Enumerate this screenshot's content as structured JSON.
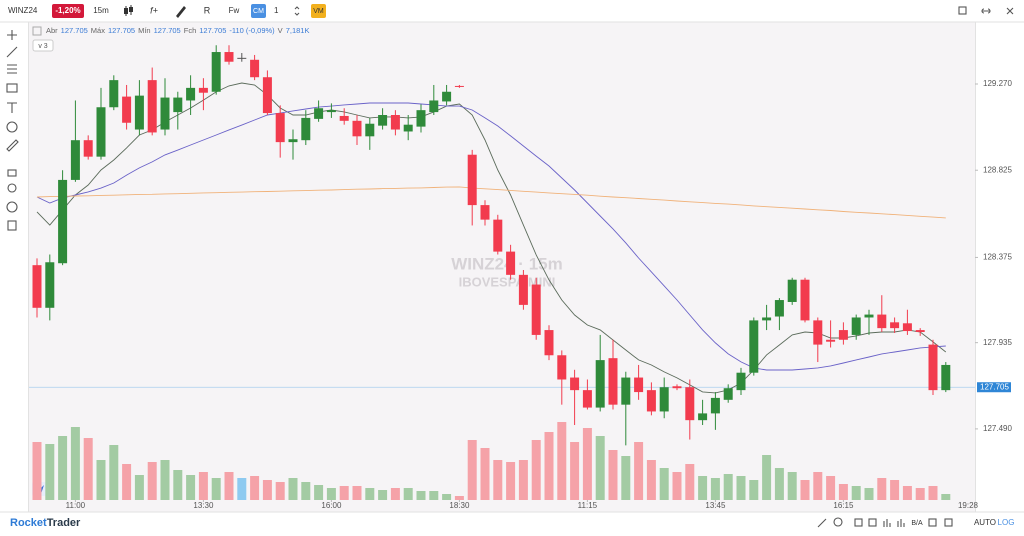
{
  "header": {
    "symbol": "WINZ24",
    "change_badge": "-1,20%",
    "interval": "15m",
    "fw": "Fw",
    "cm": "CM",
    "count": "1",
    "vm": "VM"
  },
  "info": {
    "ohlc": [
      {
        "label": "Abr",
        "value": "127.705"
      },
      {
        "label": "Máx",
        "value": "127.705"
      },
      {
        "label": "Mín",
        "value": "127.705"
      },
      {
        "label": "Fch",
        "value": "127.705"
      }
    ],
    "change": "-110 (-0,09%)",
    "volume": {
      "label": "V",
      "value": "7,181K"
    },
    "studies_button": "v 3"
  },
  "footer": {
    "logo_a": "Rocket",
    "logo_b": "Trader",
    "ba": "B/A",
    "auto": "AUTO",
    "log": "LOG"
  },
  "chart_data": {
    "type": "candlestick",
    "watermark": {
      "line1": "WINZ24 · 15m",
      "line2": "IBOVESPA MINI"
    },
    "categories": [
      null,
      null,
      null,
      "11:00",
      null,
      null,
      null,
      null,
      null,
      null,
      null,
      null,
      null,
      "13:30",
      null,
      null,
      null,
      null,
      null,
      null,
      null,
      null,
      null,
      "16:00",
      null,
      null,
      null,
      null,
      null,
      null,
      null,
      null,
      null,
      "18:30",
      null,
      null,
      null,
      null,
      null,
      null,
      null,
      null,
      null,
      "11:15",
      null,
      null,
      null,
      null,
      null,
      null,
      null,
      null,
      null,
      "13:45",
      null,
      null,
      null,
      null,
      null,
      null,
      null,
      null,
      null,
      "16:15",
      null,
      null,
      null,
      null,
      null,
      null,
      null,
      null
    ],
    "time_marker": "19:28",
    "candles": [
      [
        128.335,
        128.37,
        128.065,
        128.115
      ],
      [
        128.115,
        128.39,
        128.05,
        128.35
      ],
      [
        128.345,
        128.825,
        128.335,
        128.775
      ],
      [
        128.775,
        129.185,
        128.765,
        128.98
      ],
      [
        128.98,
        129.005,
        128.88,
        128.895
      ],
      [
        128.895,
        129.25,
        128.88,
        129.15
      ],
      [
        129.15,
        129.315,
        129.135,
        129.29
      ],
      [
        129.205,
        129.265,
        129.035,
        129.07
      ],
      [
        129.035,
        129.29,
        129.005,
        129.21
      ],
      [
        129.29,
        129.355,
        129.005,
        129.02
      ],
      [
        129.035,
        129.3,
        129.005,
        129.2
      ],
      [
        129.125,
        129.23,
        129.035,
        129.2
      ],
      [
        129.185,
        129.315,
        129.11,
        129.25
      ],
      [
        129.25,
        129.3,
        129.135,
        129.225
      ],
      [
        129.23,
        129.47,
        129.215,
        129.435
      ],
      [
        129.435,
        129.47,
        129.37,
        129.385
      ],
      [
        129.405,
        129.43,
        129.385,
        129.405
      ],
      [
        129.395,
        129.42,
        129.29,
        129.305
      ],
      [
        129.305,
        129.34,
        129.11,
        129.12
      ],
      [
        129.12,
        129.16,
        128.89,
        128.97
      ],
      [
        128.97,
        129.035,
        128.88,
        128.985
      ],
      [
        128.98,
        129.135,
        128.955,
        129.095
      ],
      [
        129.09,
        129.185,
        129.075,
        129.145
      ],
      [
        129.125,
        129.17,
        129.095,
        129.135
      ],
      [
        129.105,
        129.145,
        129.06,
        129.08
      ],
      [
        129.08,
        129.11,
        128.955,
        129.0
      ],
      [
        129.0,
        129.095,
        128.93,
        129.065
      ],
      [
        129.055,
        129.145,
        129.035,
        129.11
      ],
      [
        129.11,
        129.135,
        129.005,
        129.035
      ],
      [
        129.025,
        129.11,
        128.98,
        129.06
      ],
      [
        129.05,
        129.165,
        129.02,
        129.135
      ],
      [
        129.125,
        129.265,
        129.11,
        129.185
      ],
      [
        129.18,
        129.265,
        129.16,
        129.23
      ],
      [
        129.26,
        129.265,
        129.25,
        129.255
      ],
      [
        128.905,
        128.93,
        128.54,
        128.645
      ],
      [
        128.645,
        128.67,
        128.54,
        128.57
      ],
      [
        128.57,
        128.595,
        128.39,
        128.405
      ],
      [
        128.405,
        128.44,
        128.26,
        128.285
      ],
      [
        128.285,
        128.31,
        128.105,
        128.13
      ],
      [
        128.235,
        128.27,
        127.95,
        127.975
      ],
      [
        128.0,
        128.025,
        127.845,
        127.87
      ],
      [
        127.87,
        127.895,
        127.615,
        127.745
      ],
      [
        127.755,
        127.795,
        127.51,
        127.69
      ],
      [
        127.69,
        127.745,
        127.59,
        127.6
      ],
      [
        127.6,
        127.975,
        127.58,
        127.845
      ],
      [
        127.855,
        127.95,
        127.59,
        127.615
      ],
      [
        127.615,
        127.785,
        127.405,
        127.755
      ],
      [
        127.755,
        127.82,
        127.64,
        127.68
      ],
      [
        127.69,
        127.73,
        127.56,
        127.58
      ],
      [
        127.58,
        127.755,
        127.545,
        127.705
      ],
      [
        127.71,
        127.72,
        127.69,
        127.7
      ],
      [
        127.705,
        127.745,
        127.435,
        127.535
      ],
      [
        127.535,
        127.64,
        127.51,
        127.57
      ],
      [
        127.57,
        127.68,
        127.485,
        127.65
      ],
      [
        127.64,
        127.72,
        127.625,
        127.7
      ],
      [
        127.69,
        127.805,
        127.665,
        127.78
      ],
      [
        127.78,
        128.065,
        127.765,
        128.05
      ],
      [
        128.05,
        128.13,
        128.0,
        128.065
      ],
      [
        128.07,
        128.165,
        128.0,
        128.155
      ],
      [
        128.145,
        128.27,
        128.13,
        128.26
      ],
      [
        128.26,
        128.27,
        128.04,
        128.05
      ],
      [
        128.05,
        128.065,
        127.835,
        127.925
      ],
      [
        127.95,
        128.05,
        127.91,
        127.94
      ],
      [
        128.0,
        128.04,
        127.925,
        127.95
      ],
      [
        127.975,
        128.08,
        127.95,
        128.065
      ],
      [
        128.065,
        128.105,
        127.975,
        128.08
      ],
      [
        128.08,
        128.18,
        127.99,
        128.01
      ],
      [
        128.04,
        128.065,
        127.985,
        128.01
      ],
      [
        128.035,
        128.105,
        127.975,
        127.995
      ],
      [
        128.0,
        128.01,
        127.97,
        127.99
      ],
      [
        127.925,
        127.95,
        127.665,
        127.69
      ],
      [
        127.69,
        127.835,
        127.68,
        127.82
      ]
    ],
    "volume": [
      58,
      56,
      64,
      73,
      62,
      40,
      55,
      36,
      25,
      38,
      40,
      30,
      25,
      28,
      22,
      28,
      22,
      24,
      20,
      18,
      22,
      18,
      15,
      12,
      14,
      14,
      12,
      10,
      12,
      12,
      9,
      9,
      6,
      4,
      60,
      52,
      40,
      38,
      40,
      60,
      68,
      78,
      58,
      72,
      64,
      50,
      44,
      58,
      40,
      32,
      28,
      36,
      24,
      22,
      26,
      24,
      20,
      45,
      32,
      28,
      20,
      28,
      24,
      16,
      14,
      12,
      22,
      20,
      14,
      12,
      14,
      6
    ],
    "vlim": [
      0,
      100
    ],
    "lines": [
      {
        "color": "#5b6b5b",
        "values": [
          128.61,
          128.542,
          128.62,
          128.697,
          128.749,
          128.826,
          128.878,
          128.94,
          129.007,
          129.033,
          129.074,
          129.11,
          129.146,
          129.187,
          129.229,
          129.26,
          129.275,
          129.265,
          129.213,
          129.146,
          129.11,
          129.11,
          129.126,
          129.136,
          129.126,
          129.11,
          129.095,
          129.1,
          129.1,
          129.095,
          129.1,
          129.126,
          129.156,
          129.167,
          129.11,
          128.981,
          128.826,
          128.697,
          128.542,
          128.388,
          128.259,
          128.155,
          128.078,
          128.026,
          128.001,
          127.949,
          127.897,
          127.846,
          127.82,
          127.784,
          127.753,
          127.717,
          127.681,
          127.676,
          127.691,
          127.727,
          127.794,
          127.872,
          127.923,
          127.975,
          127.99,
          127.985,
          127.959,
          127.959,
          127.97,
          127.985,
          127.99,
          127.99,
          128.001,
          127.99,
          127.939,
          127.887
        ]
      },
      {
        "color": "#6a62c8",
        "values": [
          128.687,
          128.656,
          128.682,
          128.697,
          128.713,
          128.733,
          128.759,
          128.8,
          128.837,
          128.868,
          128.904,
          128.929,
          128.955,
          128.981,
          129.007,
          129.033,
          129.058,
          129.084,
          129.11,
          129.12,
          129.131,
          129.141,
          129.151,
          129.156,
          129.162,
          129.167,
          129.172,
          129.172,
          129.172,
          129.172,
          129.167,
          129.162,
          129.156,
          129.156,
          129.136,
          129.095,
          129.053,
          129.002,
          128.95,
          128.898,
          128.847,
          128.785,
          128.723,
          128.656,
          128.589,
          128.522,
          128.45,
          128.372,
          128.3,
          128.228,
          128.155,
          128.078,
          128.001,
          127.934,
          127.877,
          127.836,
          127.805,
          127.794,
          127.794,
          127.794,
          127.799,
          127.805,
          127.815,
          127.83,
          127.846,
          127.861,
          127.877,
          127.887,
          127.897,
          127.908,
          127.913,
          127.918
        ]
      },
      {
        "color": "#f0b27a",
        "values": [
          128.687,
          128.689,
          128.69,
          128.692,
          128.693,
          128.695,
          128.696,
          128.698,
          128.7,
          128.701,
          128.703,
          128.704,
          128.706,
          128.708,
          128.709,
          128.711,
          128.712,
          128.714,
          128.715,
          128.717,
          128.719,
          128.72,
          128.722,
          128.723,
          128.725,
          128.727,
          128.728,
          128.73,
          128.731,
          128.733,
          128.734,
          128.736,
          128.738,
          128.739,
          128.733,
          128.729,
          128.725,
          128.721,
          128.716,
          128.712,
          128.708,
          128.704,
          128.7,
          128.696,
          128.691,
          128.687,
          128.683,
          128.679,
          128.675,
          128.671,
          128.666,
          128.662,
          128.658,
          128.654,
          128.65,
          128.646,
          128.641,
          128.637,
          128.633,
          128.629,
          128.625,
          128.621,
          128.617,
          128.612,
          128.608,
          128.604,
          128.6,
          128.596,
          128.592,
          128.587,
          128.583,
          128.579
        ]
      }
    ],
    "ylim": [
      127.123,
      129.59
    ],
    "yticks": [
      {
        "value": 129.27,
        "label": "129.270"
      },
      {
        "value": 128.825,
        "label": "128.825"
      },
      {
        "value": 128.375,
        "label": "128.375"
      },
      {
        "value": 127.935,
        "label": "127.935"
      },
      {
        "value": 127.49,
        "label": "127.490"
      }
    ],
    "last_price": {
      "value": 127.705,
      "label": "127.705"
    },
    "grid": false,
    "up_color": "#2f8a3a",
    "down_color": "#f23b4e",
    "volume_up_color": "#a3cba3",
    "volume_down_color": "#f5a2a8",
    "volume_flat_color": "#8ecaf0"
  }
}
